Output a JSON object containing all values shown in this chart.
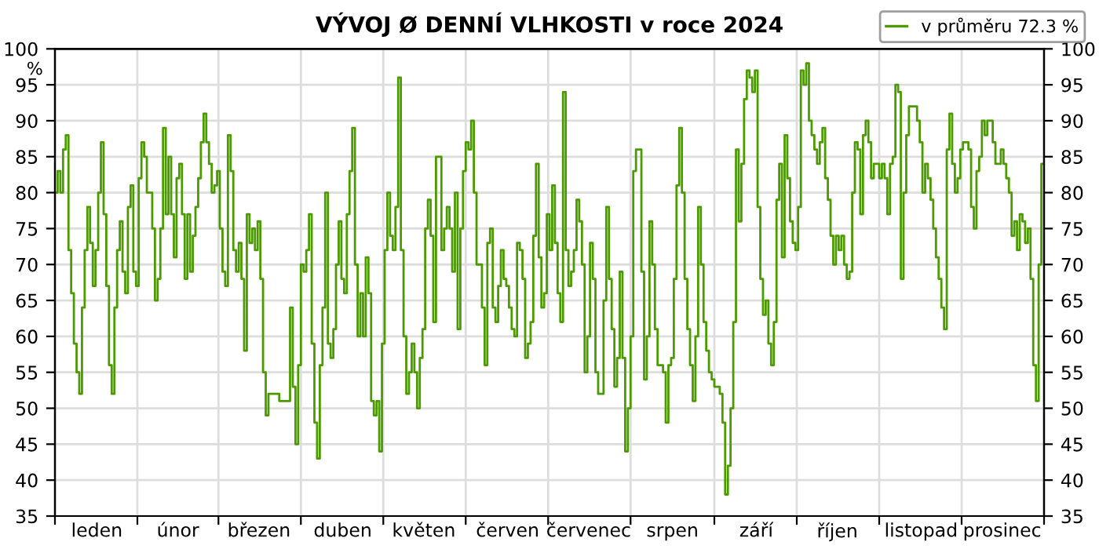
{
  "chart_data": {
    "type": "step",
    "title": "VÝVOJ Ø DENNÍ VLHKOSTI v roce 2024",
    "ylabel": "%",
    "categories": [
      null,
      null,
      null,
      null,
      null,
      null,
      null,
      null,
      null,
      null,
      null,
      null,
      null,
      null,
      null,
      "leden",
      null,
      null,
      null,
      null,
      null,
      null,
      null,
      null,
      null,
      null,
      null,
      null,
      null,
      null,
      null,
      null,
      null,
      null,
      null,
      null,
      null,
      null,
      null,
      null,
      null,
      null,
      null,
      null,
      null,
      "únor",
      null,
      null,
      null,
      null,
      null,
      null,
      null,
      null,
      null,
      null,
      null,
      null,
      null,
      null,
      null,
      null,
      null,
      null,
      null,
      null,
      null,
      null,
      null,
      null,
      null,
      null,
      null,
      null,
      null,
      "březen",
      null,
      null,
      null,
      null,
      null,
      null,
      null,
      null,
      null,
      null,
      null,
      null,
      null,
      null,
      null,
      null,
      null,
      null,
      null,
      null,
      null,
      null,
      null,
      null,
      null,
      null,
      null,
      null,
      null,
      null,
      "duben",
      null,
      null,
      null,
      null,
      null,
      null,
      null,
      null,
      null,
      null,
      null,
      null,
      null,
      null,
      null,
      null,
      null,
      null,
      null,
      null,
      null,
      null,
      null,
      null,
      null,
      null,
      null,
      null,
      null,
      "květen",
      null,
      null,
      null,
      null,
      null,
      null,
      null,
      null,
      null,
      null,
      null,
      null,
      null,
      null,
      null,
      null,
      null,
      null,
      null,
      null,
      null,
      null,
      null,
      null,
      null,
      null,
      null,
      null,
      null,
      null,
      "červen",
      null,
      null,
      null,
      null,
      null,
      null,
      null,
      null,
      null,
      null,
      null,
      null,
      null,
      null,
      null,
      null,
      null,
      null,
      null,
      null,
      null,
      null,
      null,
      null,
      null,
      null,
      null,
      null,
      null,
      "červenec",
      null,
      null,
      null,
      null,
      null,
      null,
      null,
      null,
      null,
      null,
      null,
      null,
      null,
      null,
      null,
      null,
      null,
      null,
      null,
      null,
      null,
      null,
      null,
      null,
      null,
      null,
      null,
      null,
      null,
      null,
      "srpen",
      null,
      null,
      null,
      null,
      null,
      null,
      null,
      null,
      null,
      null,
      null,
      null,
      null,
      null,
      null,
      null,
      null,
      null,
      null,
      null,
      null,
      null,
      null,
      null,
      null,
      null,
      null,
      null,
      null,
      null,
      "září",
      null,
      null,
      null,
      null,
      null,
      null,
      null,
      null,
      null,
      null,
      null,
      null,
      null,
      null,
      null,
      null,
      null,
      null,
      null,
      null,
      null,
      null,
      null,
      null,
      null,
      null,
      null,
      null,
      null,
      "říjen",
      null,
      null,
      null,
      null,
      null,
      null,
      null,
      null,
      null,
      null,
      null,
      null,
      null,
      null,
      null,
      null,
      null,
      null,
      null,
      null,
      null,
      null,
      null,
      null,
      null,
      null,
      null,
      null,
      null,
      null,
      "listopad",
      null,
      null,
      null,
      null,
      null,
      null,
      null,
      null,
      null,
      null,
      null,
      null,
      null,
      null,
      null,
      null,
      null,
      null,
      null,
      null,
      null,
      null,
      null,
      null,
      null,
      null,
      null,
      null,
      null,
      "prosinec",
      null,
      null,
      null,
      null,
      null,
      null,
      null,
      null,
      null,
      null,
      null,
      null,
      null,
      null,
      null
    ],
    "ylim": [
      35,
      100
    ],
    "yticks": [
      35,
      40,
      45,
      50,
      55,
      60,
      65,
      70,
      75,
      80,
      85,
      90,
      95,
      100
    ],
    "y2lim": [
      35,
      100
    ],
    "y2ticks": [
      35,
      40,
      45,
      50,
      55,
      60,
      65,
      70,
      75,
      80,
      85,
      90,
      95,
      100
    ],
    "grid": true,
    "legend": "top right",
    "line_style": "solid",
    "marker": "none",
    "series": [
      {
        "name": "v průměru 72.3 %",
        "color": "#4a9a00",
        "values": [
          80,
          83,
          80,
          86,
          88,
          72,
          66,
          59,
          55,
          52,
          64,
          72,
          78,
          73,
          67,
          72,
          80,
          87,
          77,
          67,
          56,
          52,
          64,
          72,
          76,
          69,
          66,
          78,
          81,
          69,
          67,
          82,
          87,
          85,
          80,
          80,
          75,
          65,
          68,
          75,
          89,
          77,
          85,
          77,
          71,
          82,
          84,
          77,
          68,
          77,
          69,
          74,
          78,
          82,
          87,
          91,
          87,
          84,
          80,
          81,
          83,
          75,
          69,
          67,
          88,
          83,
          72,
          69,
          73,
          68,
          58,
          77,
          73,
          75,
          72,
          76,
          68,
          55,
          49,
          52,
          52,
          52,
          52,
          51,
          51,
          51,
          51,
          64,
          53,
          45,
          56,
          70,
          69,
          72,
          77,
          59,
          48,
          43,
          56,
          64,
          80,
          59,
          57,
          61,
          70,
          76,
          68,
          66,
          77,
          83,
          89,
          70,
          60,
          66,
          60,
          71,
          66,
          51,
          49,
          51,
          44,
          59,
          72,
          80,
          74,
          72,
          78,
          96,
          72,
          60,
          52,
          55,
          59,
          55,
          50,
          57,
          61,
          75,
          79,
          74,
          62,
          85,
          85,
          72,
          75,
          78,
          75,
          69,
          80,
          61,
          75,
          83,
          87,
          86,
          90,
          80,
          70,
          70,
          64,
          56,
          73,
          75,
          64,
          62,
          67,
          72,
          68,
          67,
          64,
          61,
          60,
          73,
          72,
          68,
          57,
          59,
          62,
          74,
          84,
          71,
          64,
          66,
          77,
          72,
          81,
          73,
          66,
          62,
          94,
          72,
          67,
          69,
          72,
          79,
          76,
          70,
          55,
          60,
          73,
          68,
          55,
          52,
          52,
          65,
          78,
          68,
          61,
          53,
          57,
          69,
          57,
          44,
          50,
          60,
          83,
          86,
          86,
          69,
          54,
          60,
          76,
          70,
          61,
          56,
          56,
          55,
          48,
          56,
          57,
          68,
          81,
          89,
          80,
          68,
          61,
          56,
          51,
          60,
          78,
          70,
          62,
          58,
          55,
          54,
          53,
          53,
          52,
          48,
          38,
          42,
          50,
          62,
          86,
          76,
          84,
          93,
          97,
          96,
          94,
          97,
          78,
          68,
          63,
          65,
          59,
          56,
          62,
          79,
          84,
          71,
          88,
          82,
          76,
          73,
          72,
          78,
          97,
          95,
          98,
          90,
          88,
          86,
          84,
          87,
          89,
          82,
          79,
          74,
          70,
          74,
          72,
          74,
          70,
          68,
          69,
          80,
          87,
          86,
          77,
          88,
          90,
          87,
          82,
          84,
          84,
          82,
          84,
          82,
          77,
          84,
          85,
          95,
          94,
          68,
          80,
          88,
          92,
          92,
          92,
          90,
          87,
          80,
          84,
          82,
          79,
          75,
          71,
          68,
          64,
          61,
          86,
          91,
          84,
          80,
          82,
          86,
          87,
          87,
          86,
          78,
          75,
          83,
          85,
          90,
          88,
          90,
          90,
          87,
          84,
          84,
          86,
          84,
          82,
          80,
          74,
          76,
          72,
          77,
          76,
          73,
          75,
          68,
          56,
          51,
          70,
          84
        ]
      }
    ]
  }
}
